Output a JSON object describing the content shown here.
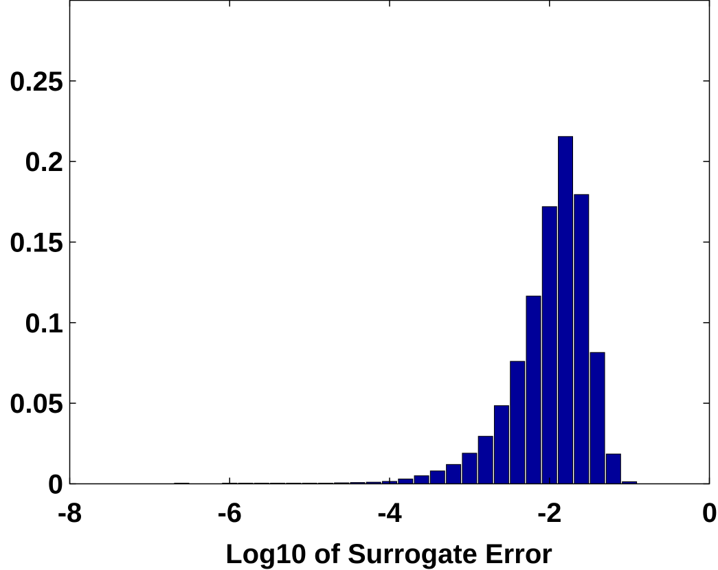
{
  "chart_data": {
    "type": "bar",
    "title": "",
    "xlabel": "Log10 of Surrogate Error",
    "ylabel": "",
    "xlim": [
      -8,
      0
    ],
    "ylim": [
      0,
      0.3
    ],
    "grid": false,
    "legend": "none",
    "bar_color": "#000099",
    "bar_width": 0.18,
    "x_ticks": [
      {
        "value": -8,
        "label": "-8"
      },
      {
        "value": -6,
        "label": "-6"
      },
      {
        "value": -4,
        "label": "-4"
      },
      {
        "value": -2,
        "label": "-2"
      },
      {
        "value": 0,
        "label": "0"
      }
    ],
    "y_ticks": [
      {
        "value": 0,
        "label": "0"
      },
      {
        "value": 0.05,
        "label": "0.05"
      },
      {
        "value": 0.1,
        "label": "0.1"
      },
      {
        "value": 0.15,
        "label": "0.15"
      },
      {
        "value": 0.2,
        "label": "0.2"
      },
      {
        "value": 0.25,
        "label": "0.25"
      }
    ],
    "x": [
      -6.6,
      -6.0,
      -5.8,
      -5.6,
      -5.4,
      -5.2,
      -5.0,
      -4.8,
      -4.6,
      -4.4,
      -4.2,
      -4.0,
      -3.8,
      -3.6,
      -3.4,
      -3.2,
      -3.0,
      -2.8,
      -2.6,
      -2.4,
      -2.2,
      -2.0,
      -1.8,
      -1.6,
      -1.4,
      -1.2,
      -1.0
    ],
    "values": [
      0.0004,
      0.0004,
      0.0004,
      0.0004,
      0.0004,
      0.0004,
      0.0004,
      0.0004,
      0.0006,
      0.0008,
      0.001,
      0.0015,
      0.003,
      0.005,
      0.008,
      0.012,
      0.019,
      0.0295,
      0.0485,
      0.076,
      0.1165,
      0.172,
      0.2155,
      0.1795,
      0.0815,
      0.0185,
      0.0013
    ]
  }
}
